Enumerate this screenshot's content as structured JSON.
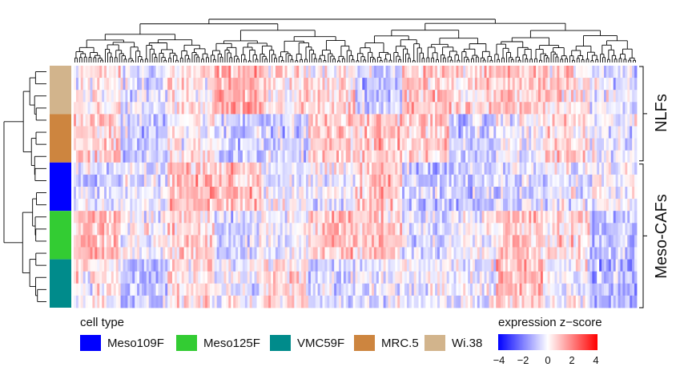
{
  "chart_data": {
    "type": "heatmap",
    "title": "",
    "row_groups": [
      {
        "label": "NLFs",
        "cell_types": [
          "Wi.38",
          "MRC.5"
        ]
      },
      {
        "label": "Meso-CAFs",
        "cell_types": [
          "Meso109F",
          "Meso125F",
          "VMC59F"
        ]
      }
    ],
    "row_annotation_order": [
      "Wi.38",
      "MRC.5",
      "Meso109F",
      "Meso125F",
      "VMC59F"
    ],
    "rows_per_cell_type": 4,
    "column_dendrogram": true,
    "row_dendrogram": true,
    "color_scale": {
      "title": "expression z−score",
      "min": -4,
      "max": 4,
      "ticks": [
        "−4",
        "−2",
        "0",
        "2",
        "4"
      ],
      "tick_values": [
        -4,
        -2,
        0,
        2,
        4
      ],
      "low_color": "#0000ff",
      "mid_color": "#ffffff",
      "high_color": "#ff0000"
    }
  },
  "legend": {
    "title": "cell type",
    "items": [
      {
        "label": "Meso109F",
        "color": "#0000ff"
      },
      {
        "label": "Meso125F",
        "color": "#33cc33"
      },
      {
        "label": "VMC59F",
        "color": "#008b8b"
      },
      {
        "label": "MRC.5",
        "color": "#cd853f"
      },
      {
        "label": "Wi.38",
        "color": "#d2b48c"
      }
    ]
  }
}
